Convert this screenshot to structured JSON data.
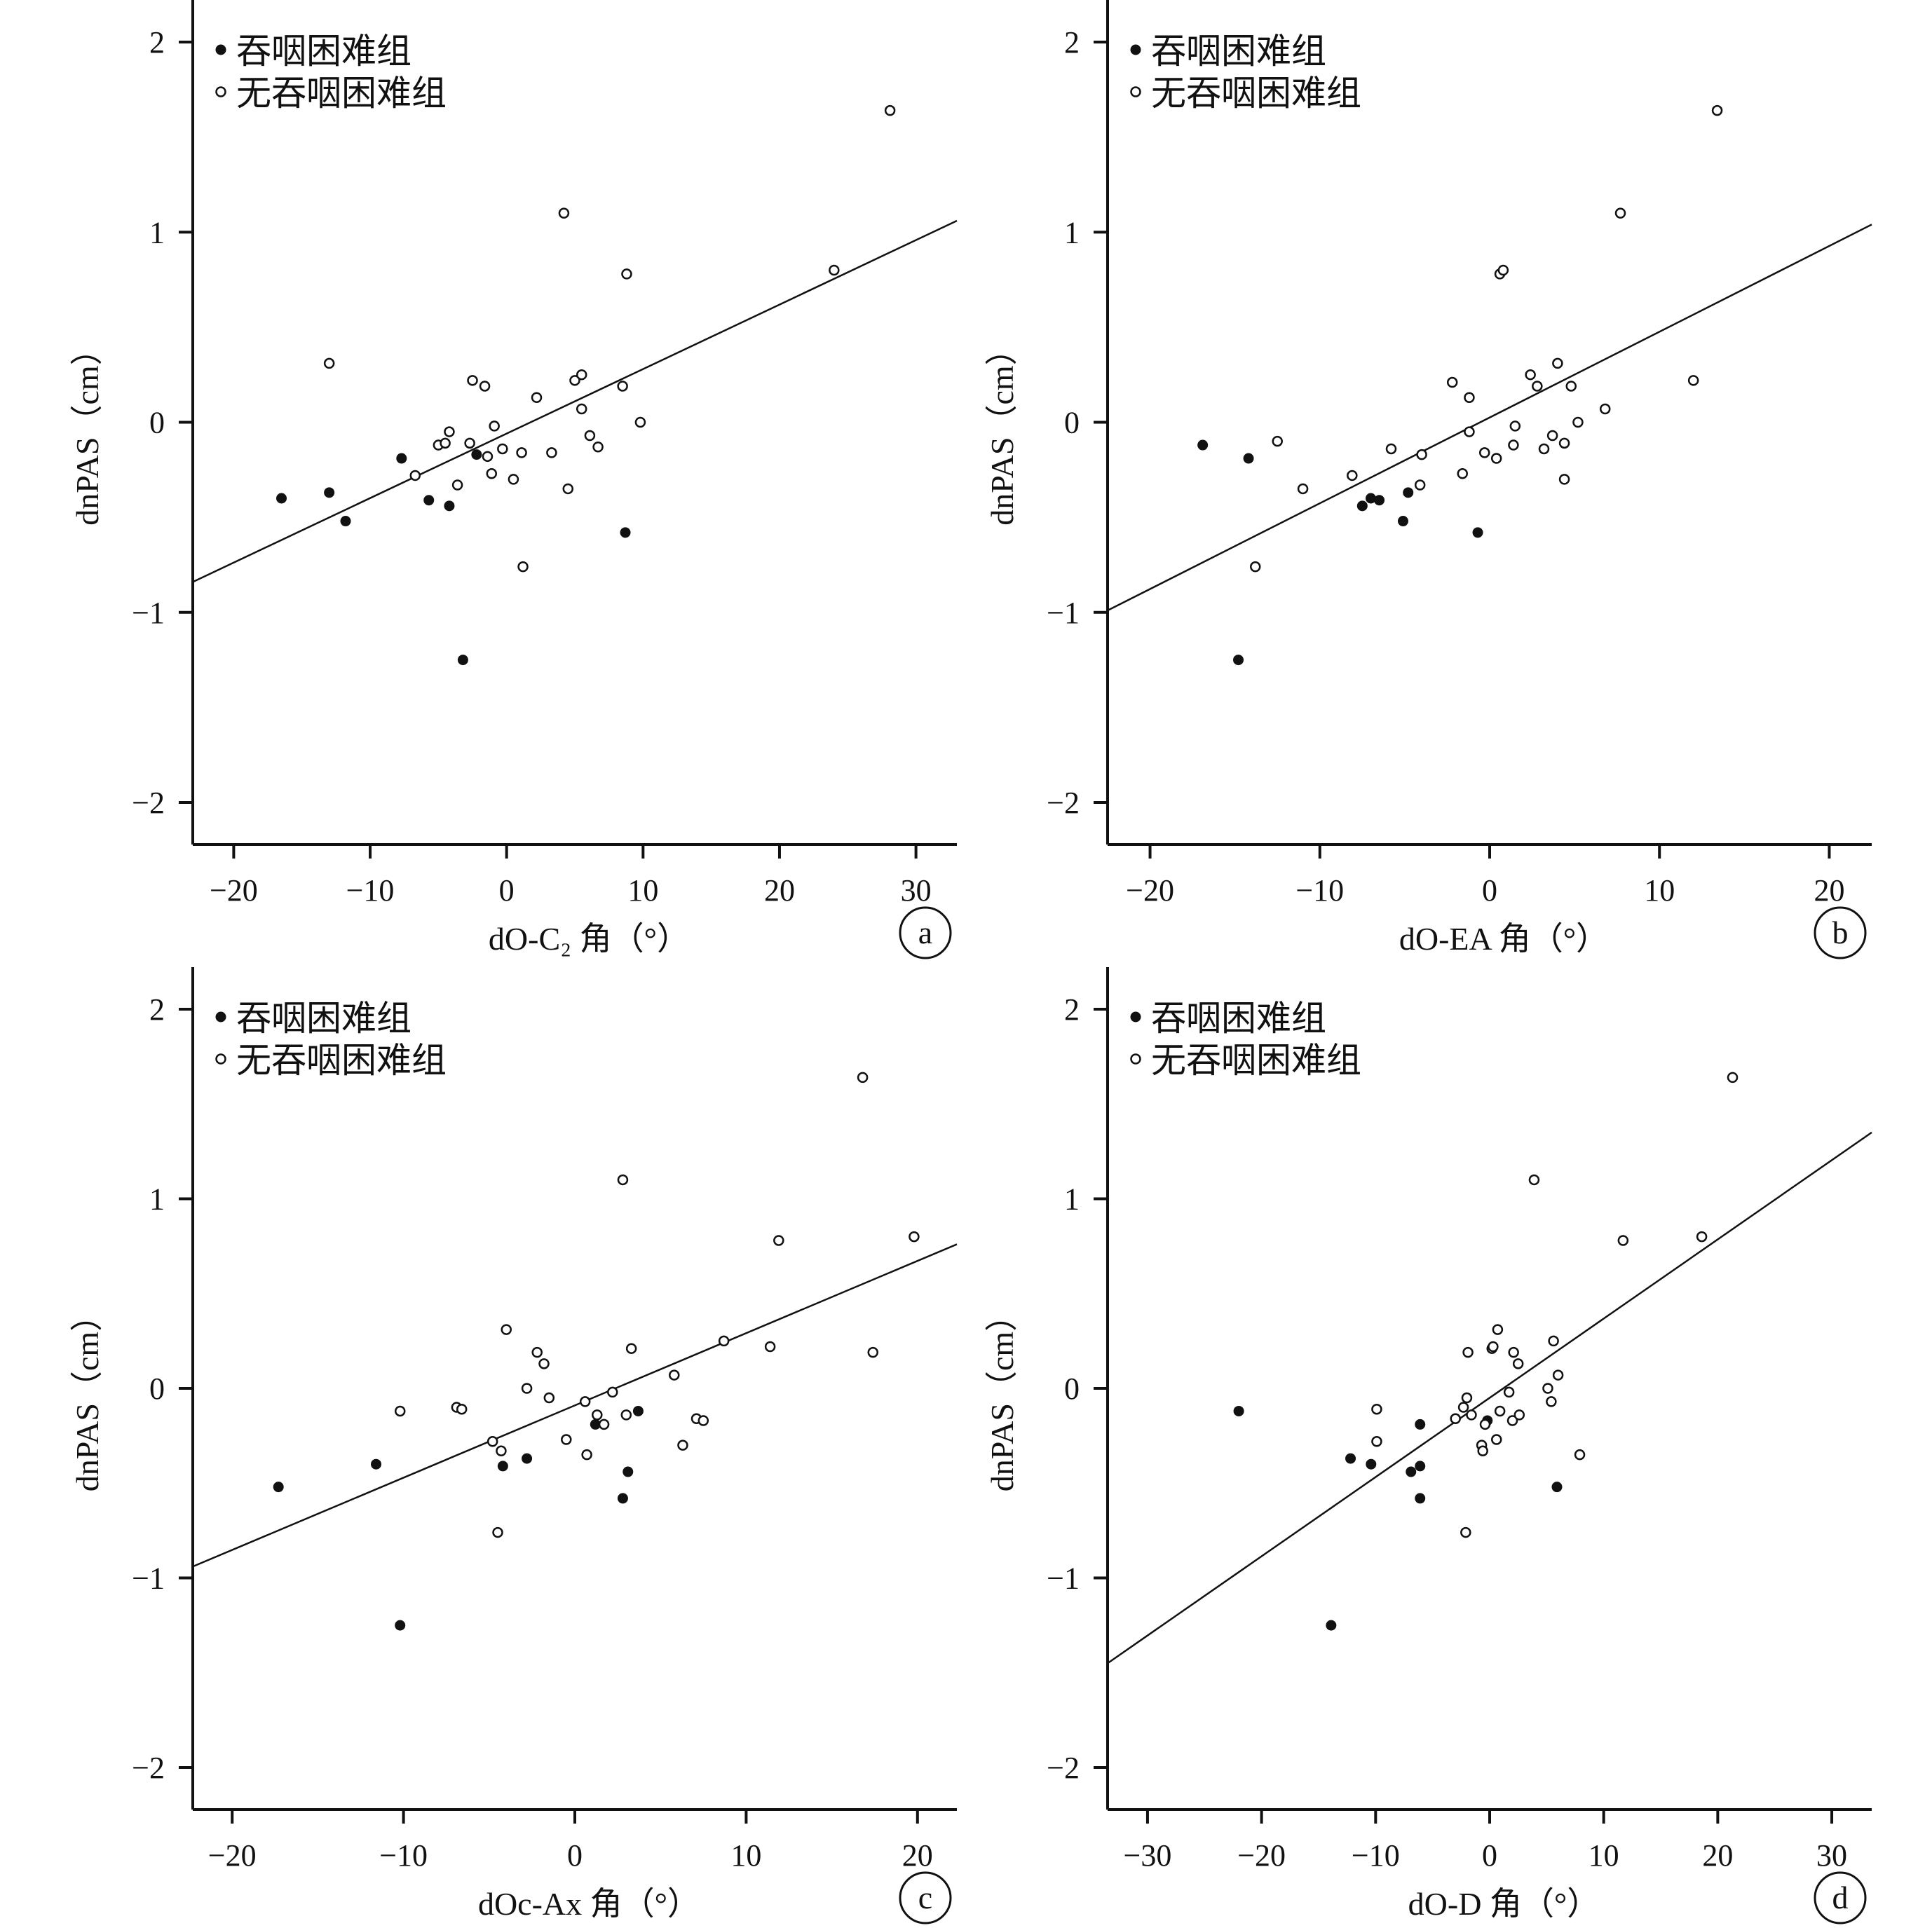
{
  "chart_data": [
    {
      "id": "a",
      "type": "scatter",
      "panel_label": "a",
      "xlabel": "dO-C₂ 角（°）",
      "ylabel": "dnPAS（cm）",
      "xlim": [
        -23,
        33
      ],
      "ylim": [
        -2.2,
        2.2
      ],
      "xticks": [
        -20,
        -10,
        0,
        10,
        20,
        30
      ],
      "yticks": [
        -2,
        -1,
        0,
        1,
        2
      ],
      "legend_position": "top-left",
      "series": [
        {
          "name": "吞咽困难组",
          "marker": "filled-circle",
          "points": [
            [
              -16.5,
              -0.4
            ],
            [
              -13.0,
              -0.37
            ],
            [
              -11.8,
              -0.52
            ],
            [
              -7.7,
              -0.19
            ],
            [
              -5.7,
              -0.41
            ],
            [
              -4.2,
              -0.44
            ],
            [
              -2.2,
              -0.17
            ],
            [
              -3.2,
              -1.25
            ],
            [
              8.7,
              -0.58
            ]
          ]
        },
        {
          "name": "无吞咽困难组",
          "marker": "open-circle",
          "points": [
            [
              -13.0,
              0.31
            ],
            [
              -6.7,
              -0.28
            ],
            [
              -5.0,
              -0.12
            ],
            [
              -4.5,
              -0.11
            ],
            [
              -4.2,
              -0.05
            ],
            [
              -3.6,
              -0.33
            ],
            [
              -2.7,
              -0.11
            ],
            [
              -2.5,
              0.22
            ],
            [
              -1.6,
              0.19
            ],
            [
              -1.4,
              -0.18
            ],
            [
              -1.1,
              -0.27
            ],
            [
              -0.9,
              -0.02
            ],
            [
              -0.3,
              -0.14
            ],
            [
              0.5,
              -0.3
            ],
            [
              1.1,
              -0.16
            ],
            [
              1.2,
              -0.76
            ],
            [
              2.2,
              0.13
            ],
            [
              3.3,
              -0.16
            ],
            [
              4.2,
              1.1
            ],
            [
              4.5,
              -0.35
            ],
            [
              5.0,
              0.22
            ],
            [
              5.5,
              0.25
            ],
            [
              5.5,
              0.07
            ],
            [
              6.1,
              -0.07
            ],
            [
              6.7,
              -0.13
            ],
            [
              8.5,
              0.19
            ],
            [
              8.8,
              0.78
            ],
            [
              9.8,
              0.0
            ],
            [
              24.0,
              0.8
            ],
            [
              28.1,
              1.64
            ]
          ]
        }
      ],
      "fit_line": {
        "x": [
          -23,
          33
        ],
        "y": [
          -0.84,
          1.06
        ]
      }
    },
    {
      "id": "b",
      "type": "scatter",
      "panel_label": "b",
      "xlabel": "dO-EA 角（°）",
      "ylabel": "dnPAS（cm）",
      "xlim": [
        -22.5,
        22.5
      ],
      "ylim": [
        -2.2,
        2.2
      ],
      "xticks": [
        -20,
        -10,
        0,
        10,
        20
      ],
      "yticks": [
        -2,
        -1,
        0,
        1,
        2
      ],
      "legend_position": "top-left",
      "series": [
        {
          "name": "吞咽困难组",
          "marker": "filled-circle",
          "points": [
            [
              -16.9,
              -0.12
            ],
            [
              -14.2,
              -0.19
            ],
            [
              -7.5,
              -0.44
            ],
            [
              -7.0,
              -0.4
            ],
            [
              -6.5,
              -0.41
            ],
            [
              -5.1,
              -0.52
            ],
            [
              -4.8,
              -0.37
            ],
            [
              -0.7,
              -0.58
            ],
            [
              -14.8,
              -1.25
            ]
          ]
        },
        {
          "name": "无吞咽困难组",
          "marker": "open-circle",
          "points": [
            [
              -13.8,
              -0.76
            ],
            [
              -12.5,
              -0.1
            ],
            [
              -11.0,
              -0.35
            ],
            [
              -8.1,
              -0.28
            ],
            [
              -5.8,
              -0.14
            ],
            [
              -4.1,
              -0.33
            ],
            [
              -4.0,
              -0.17
            ],
            [
              -2.2,
              0.21
            ],
            [
              -1.6,
              -0.27
            ],
            [
              -1.2,
              0.13
            ],
            [
              -1.2,
              -0.05
            ],
            [
              -0.3,
              -0.16
            ],
            [
              0.4,
              -0.19
            ],
            [
              0.6,
              0.78
            ],
            [
              0.8,
              0.8
            ],
            [
              1.4,
              -0.12
            ],
            [
              1.5,
              -0.02
            ],
            [
              2.4,
              0.25
            ],
            [
              2.8,
              0.19
            ],
            [
              3.2,
              -0.14
            ],
            [
              3.7,
              -0.07
            ],
            [
              4.0,
              0.31
            ],
            [
              4.4,
              -0.11
            ],
            [
              4.4,
              -0.3
            ],
            [
              4.8,
              0.19
            ],
            [
              5.2,
              0.0
            ],
            [
              6.8,
              0.07
            ],
            [
              7.7,
              1.1
            ],
            [
              12.0,
              0.22
            ],
            [
              13.4,
              1.64
            ]
          ]
        }
      ],
      "fit_line": {
        "x": [
          -22.5,
          22.5
        ],
        "y": [
          -0.99,
          1.04
        ]
      }
    },
    {
      "id": "c",
      "type": "scatter",
      "panel_label": "c",
      "xlabel": "dOc-Ax 角（°）",
      "ylabel": "dnPAS（cm）",
      "xlim": [
        -22.3,
        22.3
      ],
      "ylim": [
        -2.2,
        2.2
      ],
      "xticks": [
        -20,
        -10,
        0,
        10,
        20
      ],
      "yticks": [
        -2,
        -1,
        0,
        1,
        2
      ],
      "legend_position": "top-left",
      "series": [
        {
          "name": "吞咽困难组",
          "marker": "filled-circle",
          "points": [
            [
              -17.3,
              -0.52
            ],
            [
              -11.6,
              -0.4
            ],
            [
              -4.2,
              -0.41
            ],
            [
              -2.8,
              -0.37
            ],
            [
              1.2,
              -0.19
            ],
            [
              3.1,
              -0.44
            ],
            [
              3.7,
              -0.12
            ],
            [
              2.8,
              -0.58
            ],
            [
              -10.2,
              -1.25
            ]
          ]
        },
        {
          "name": "无吞咽困难组",
          "marker": "open-circle",
          "points": [
            [
              -10.2,
              -0.12
            ],
            [
              -6.9,
              -0.1
            ],
            [
              -6.6,
              -0.11
            ],
            [
              -4.8,
              -0.28
            ],
            [
              -4.3,
              -0.33
            ],
            [
              -4.5,
              -0.76
            ],
            [
              -4.0,
              0.31
            ],
            [
              -2.8,
              0.0
            ],
            [
              -2.2,
              0.19
            ],
            [
              -1.8,
              0.13
            ],
            [
              -1.5,
              -0.05
            ],
            [
              -0.5,
              -0.27
            ],
            [
              0.6,
              -0.07
            ],
            [
              0.7,
              -0.35
            ],
            [
              1.3,
              -0.14
            ],
            [
              1.7,
              -0.19
            ],
            [
              2.2,
              -0.02
            ],
            [
              2.8,
              1.1
            ],
            [
              3.0,
              -0.14
            ],
            [
              3.3,
              0.21
            ],
            [
              5.8,
              0.07
            ],
            [
              6.3,
              -0.3
            ],
            [
              7.1,
              -0.16
            ],
            [
              7.5,
              -0.17
            ],
            [
              8.7,
              0.25
            ],
            [
              11.4,
              0.22
            ],
            [
              11.9,
              0.78
            ],
            [
              17.4,
              0.19
            ],
            [
              16.8,
              1.64
            ],
            [
              19.8,
              0.8
            ]
          ]
        }
      ],
      "fit_line": {
        "x": [
          -22.3,
          22.3
        ],
        "y": [
          -0.94,
          0.76
        ]
      }
    },
    {
      "id": "d",
      "type": "scatter",
      "panel_label": "d",
      "xlabel": "dO-D 角（°）",
      "ylabel": "dnPAS（cm）",
      "xlim": [
        -33.5,
        33.5
      ],
      "ylim": [
        -2.2,
        2.2
      ],
      "xticks": [
        -30,
        -20,
        -10,
        0,
        10,
        20,
        30
      ],
      "yticks": [
        -2,
        -1,
        0,
        1,
        2
      ],
      "legend_position": "top-left",
      "series": [
        {
          "name": "吞咽困难组",
          "marker": "filled-circle",
          "points": [
            [
              -22.0,
              -0.12
            ],
            [
              -12.2,
              -0.37
            ],
            [
              -10.4,
              -0.4
            ],
            [
              -6.9,
              -0.44
            ],
            [
              -6.1,
              -0.41
            ],
            [
              -6.1,
              -0.19
            ],
            [
              -6.1,
              -0.58
            ],
            [
              -0.2,
              -0.17
            ],
            [
              5.9,
              -0.52
            ],
            [
              -13.9,
              -1.25
            ]
          ]
        },
        {
          "name": "无吞咽困难组",
          "marker": "open-circle",
          "points": [
            [
              -9.9,
              -0.11
            ],
            [
              -9.9,
              -0.28
            ],
            [
              -3.0,
              -0.16
            ],
            [
              -2.3,
              -0.1
            ],
            [
              -2.0,
              -0.05
            ],
            [
              -1.9,
              0.19
            ],
            [
              -1.6,
              -0.14
            ],
            [
              -2.1,
              -0.76
            ],
            [
              -0.7,
              -0.3
            ],
            [
              -0.6,
              -0.33
            ],
            [
              -0.4,
              -0.19
            ],
            [
              0.2,
              0.21
            ],
            [
              0.3,
              0.22
            ],
            [
              0.6,
              -0.27
            ],
            [
              0.7,
              0.31
            ],
            [
              0.9,
              -0.12
            ],
            [
              1.7,
              -0.02
            ],
            [
              2.0,
              -0.17
            ],
            [
              2.1,
              0.19
            ],
            [
              2.5,
              0.13
            ],
            [
              2.6,
              -0.14
            ],
            [
              3.9,
              1.1
            ],
            [
              5.1,
              0.0
            ],
            [
              5.4,
              -0.07
            ],
            [
              5.6,
              0.25
            ],
            [
              6.0,
              0.07
            ],
            [
              7.9,
              -0.35
            ],
            [
              11.7,
              0.78
            ],
            [
              18.6,
              0.8
            ],
            [
              21.3,
              1.64
            ]
          ]
        }
      ],
      "fit_line": {
        "x": [
          -33.5,
          33.5
        ],
        "y": [
          -1.45,
          1.35
        ]
      }
    }
  ]
}
